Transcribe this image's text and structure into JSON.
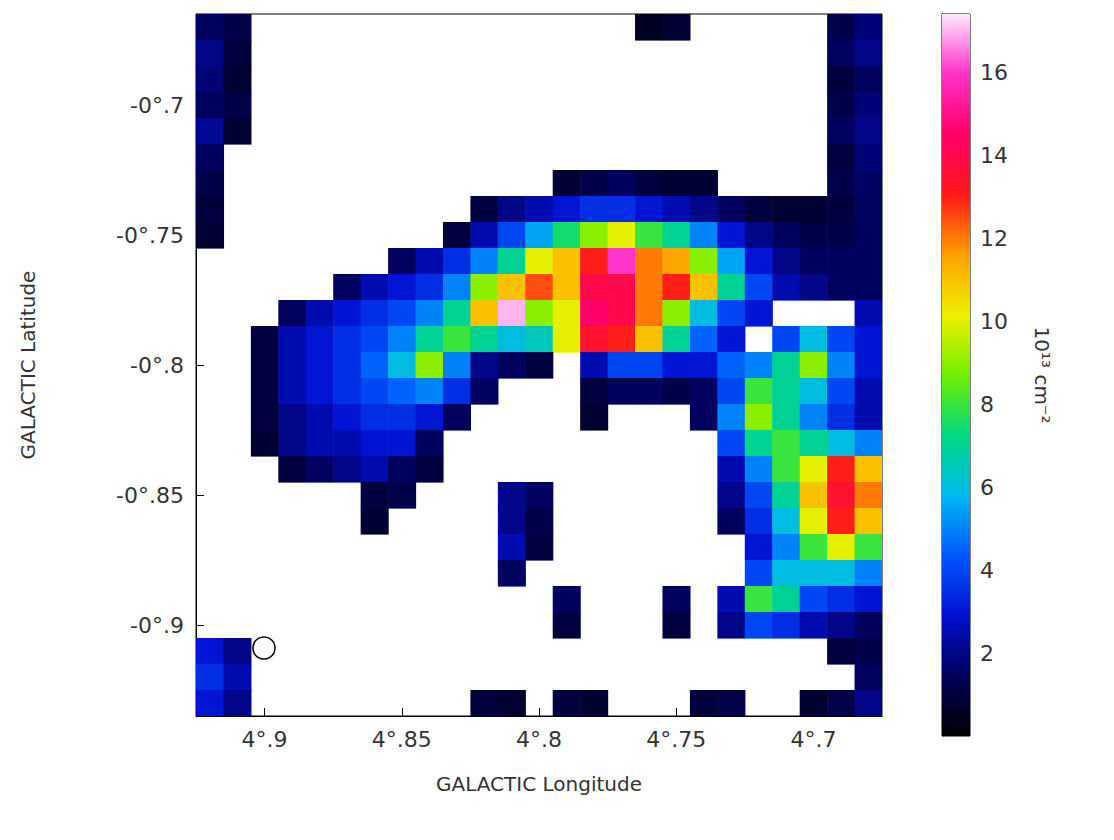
{
  "chart_data": {
    "type": "heatmap",
    "xlabel": "GALACTIC Longitude",
    "ylabel": "GALACTIC Latitude",
    "x": [
      4.92,
      4.91,
      4.9,
      4.89,
      4.88,
      4.87,
      4.86,
      4.85,
      4.84,
      4.83,
      4.82,
      4.81,
      4.8,
      4.79,
      4.78,
      4.77,
      4.76,
      4.75,
      4.74,
      4.73,
      4.72,
      4.71,
      4.7,
      4.69,
      4.68
    ],
    "y": [
      -0.67,
      -0.68,
      -0.69,
      -0.7,
      -0.71,
      -0.72,
      -0.73,
      -0.74,
      -0.75,
      -0.76,
      -0.77,
      -0.78,
      -0.79,
      -0.8,
      -0.81,
      -0.82,
      -0.83,
      -0.84,
      -0.85,
      -0.86,
      -0.87,
      -0.88,
      -0.89,
      -0.9,
      -0.91,
      -0.92,
      -0.93
    ],
    "values": [
      [
        1.5,
        1.2,
        null,
        null,
        null,
        null,
        null,
        null,
        null,
        null,
        null,
        null,
        null,
        null,
        null,
        null,
        0.6,
        0.8,
        null,
        null,
        null,
        null,
        null,
        1.2,
        1.8
      ],
      [
        2.0,
        1.0,
        null,
        null,
        null,
        null,
        null,
        null,
        null,
        null,
        null,
        null,
        null,
        null,
        null,
        null,
        null,
        null,
        null,
        null,
        null,
        null,
        null,
        1.5,
        2.0
      ],
      [
        1.8,
        0.8,
        null,
        null,
        null,
        null,
        null,
        null,
        null,
        null,
        null,
        null,
        null,
        null,
        null,
        null,
        null,
        null,
        null,
        null,
        null,
        null,
        null,
        1.0,
        1.5
      ],
      [
        1.5,
        1.2,
        null,
        null,
        null,
        null,
        null,
        null,
        null,
        null,
        null,
        null,
        null,
        null,
        null,
        null,
        null,
        null,
        null,
        null,
        null,
        null,
        null,
        1.2,
        1.8
      ],
      [
        2.2,
        0.8,
        null,
        null,
        null,
        null,
        null,
        null,
        null,
        null,
        null,
        null,
        null,
        null,
        null,
        null,
        null,
        null,
        null,
        null,
        null,
        null,
        null,
        1.5,
        2.0
      ],
      [
        1.5,
        null,
        null,
        null,
        null,
        null,
        null,
        null,
        null,
        null,
        null,
        null,
        null,
        null,
        null,
        null,
        null,
        null,
        null,
        null,
        null,
        null,
        null,
        1.0,
        1.8
      ],
      [
        1.2,
        null,
        null,
        null,
        null,
        null,
        null,
        null,
        null,
        null,
        null,
        null,
        null,
        0.8,
        1.2,
        1.5,
        1.0,
        0.8,
        0.8,
        null,
        null,
        null,
        null,
        1.2,
        1.6
      ],
      [
        1.0,
        null,
        null,
        null,
        null,
        null,
        null,
        null,
        null,
        null,
        1.0,
        2.0,
        2.5,
        3.0,
        3.5,
        3.5,
        3.0,
        2.5,
        2.0,
        1.5,
        1.0,
        0.8,
        0.8,
        1.0,
        1.5
      ],
      [
        0.8,
        null,
        null,
        null,
        null,
        null,
        null,
        null,
        null,
        1.0,
        2.5,
        4,
        5.5,
        7.5,
        9,
        10,
        8,
        7,
        5,
        3,
        2,
        1.5,
        1.2,
        1.2,
        1.5
      ],
      [
        null,
        null,
        null,
        null,
        null,
        null,
        null,
        1.5,
        2.5,
        3.5,
        5,
        7,
        10,
        11,
        13,
        16,
        12,
        11.5,
        9,
        5.5,
        3,
        2,
        1.5,
        1.5,
        1.5
      ],
      [
        null,
        null,
        null,
        null,
        null,
        1.5,
        2.5,
        3,
        3.5,
        5,
        9,
        11,
        12.5,
        11,
        14,
        14,
        12,
        13,
        11,
        7,
        4,
        2.5,
        2,
        1.5,
        1.5
      ],
      [
        null,
        null,
        null,
        1.5,
        2.5,
        3,
        3.5,
        4,
        5,
        7,
        11,
        17,
        9,
        10,
        14.5,
        14,
        12,
        9,
        6,
        4,
        3,
        null,
        null,
        null,
        2.5
      ],
      [
        null,
        null,
        1.0,
        2.5,
        3,
        3.5,
        4,
        5,
        7,
        8,
        7,
        6,
        6.5,
        10,
        13.5,
        13,
        11,
        7,
        4.5,
        3,
        null,
        4,
        6,
        4,
        3
      ],
      [
        null,
        null,
        1.0,
        2.5,
        3,
        3.5,
        4.5,
        6,
        9,
        5,
        2,
        1.5,
        1.0,
        null,
        2.5,
        4,
        4,
        3,
        3,
        4.5,
        5,
        7,
        9,
        5,
        3
      ],
      [
        null,
        null,
        1.0,
        2.5,
        3,
        3.5,
        4,
        4.5,
        5,
        3.5,
        1.5,
        null,
        null,
        null,
        1.0,
        1.5,
        1.5,
        1.2,
        1.5,
        4,
        8,
        7,
        6,
        4,
        2.5
      ],
      [
        null,
        null,
        1.0,
        2,
        2.5,
        3,
        3.5,
        3.5,
        3,
        1.5,
        null,
        null,
        null,
        null,
        0.8,
        null,
        null,
        null,
        1.5,
        5,
        9,
        7,
        5,
        3.5,
        2.5
      ],
      [
        null,
        null,
        0.8,
        2,
        2.5,
        2.5,
        3,
        3,
        1.5,
        null,
        null,
        null,
        null,
        null,
        null,
        null,
        null,
        null,
        null,
        4,
        7,
        8,
        7,
        6,
        5
      ],
      [
        null,
        null,
        null,
        1.0,
        1.5,
        2,
        2.5,
        1.5,
        1.0,
        null,
        null,
        null,
        null,
        null,
        null,
        null,
        null,
        null,
        null,
        2.5,
        5,
        8,
        10,
        13,
        11
      ],
      [
        null,
        null,
        null,
        null,
        null,
        null,
        1.0,
        1.2,
        null,
        null,
        null,
        2,
        1.5,
        null,
        null,
        null,
        null,
        null,
        null,
        2,
        4,
        7,
        11,
        13.5,
        12
      ],
      [
        null,
        null,
        null,
        null,
        null,
        null,
        0.8,
        null,
        null,
        null,
        null,
        2.0,
        1.2,
        null,
        null,
        null,
        null,
        null,
        null,
        1.5,
        3.5,
        6,
        10,
        13,
        11
      ],
      [
        null,
        null,
        null,
        null,
        null,
        null,
        null,
        null,
        null,
        null,
        null,
        2.5,
        1.0,
        null,
        null,
        null,
        null,
        null,
        null,
        null,
        3,
        5,
        8,
        10,
        8
      ],
      [
        null,
        null,
        null,
        null,
        null,
        null,
        null,
        null,
        null,
        null,
        null,
        1.5,
        null,
        null,
        null,
        null,
        null,
        null,
        null,
        null,
        4,
        6,
        6,
        6,
        5
      ],
      [
        null,
        null,
        null,
        null,
        null,
        null,
        null,
        null,
        null,
        null,
        null,
        null,
        null,
        1.5,
        null,
        null,
        null,
        1.5,
        null,
        2.5,
        8,
        7,
        4,
        3.5,
        3
      ],
      [
        null,
        null,
        null,
        null,
        null,
        null,
        null,
        null,
        null,
        null,
        null,
        null,
        null,
        1.0,
        null,
        null,
        null,
        1.0,
        null,
        2,
        4,
        3.5,
        2.5,
        2,
        1.5
      ],
      [
        3,
        2,
        null,
        null,
        null,
        null,
        null,
        null,
        null,
        null,
        null,
        null,
        null,
        null,
        null,
        null,
        null,
        null,
        null,
        null,
        null,
        null,
        null,
        1.0,
        1.2
      ],
      [
        3.5,
        2.5,
        null,
        null,
        null,
        null,
        null,
        null,
        null,
        null,
        null,
        null,
        null,
        null,
        null,
        null,
        null,
        null,
        null,
        null,
        null,
        null,
        null,
        null,
        1.5
      ],
      [
        3,
        2,
        null,
        null,
        null,
        null,
        null,
        null,
        null,
        null,
        1.0,
        0.8,
        null,
        1.0,
        0.8,
        null,
        null,
        null,
        1.0,
        1.2,
        null,
        null,
        0.8,
        1.2,
        2
      ]
    ],
    "xlim": [
      4.925,
      4.675
    ],
    "ylim": [
      -0.935,
      -0.665
    ],
    "xticks": [
      {
        "value": 4.9,
        "label": "4°.9"
      },
      {
        "value": 4.85,
        "label": "4°.85"
      },
      {
        "value": 4.8,
        "label": "4°.8"
      },
      {
        "value": 4.75,
        "label": "4°.75"
      },
      {
        "value": 4.7,
        "label": "4°.7"
      }
    ],
    "yticks": [
      {
        "value": -0.9,
        "label": "-0°.9"
      },
      {
        "value": -0.85,
        "label": "-0°.85"
      },
      {
        "value": -0.8,
        "label": "-0°.8"
      },
      {
        "value": -0.75,
        "label": "-0°.75"
      },
      {
        "value": -0.7,
        "label": "-0°.7"
      }
    ],
    "colorbar": {
      "label": "10¹³ cm⁻²",
      "range": [
        0,
        17.4
      ],
      "ticks": [
        2,
        4,
        6,
        8,
        10,
        12,
        14,
        16
      ]
    }
  }
}
